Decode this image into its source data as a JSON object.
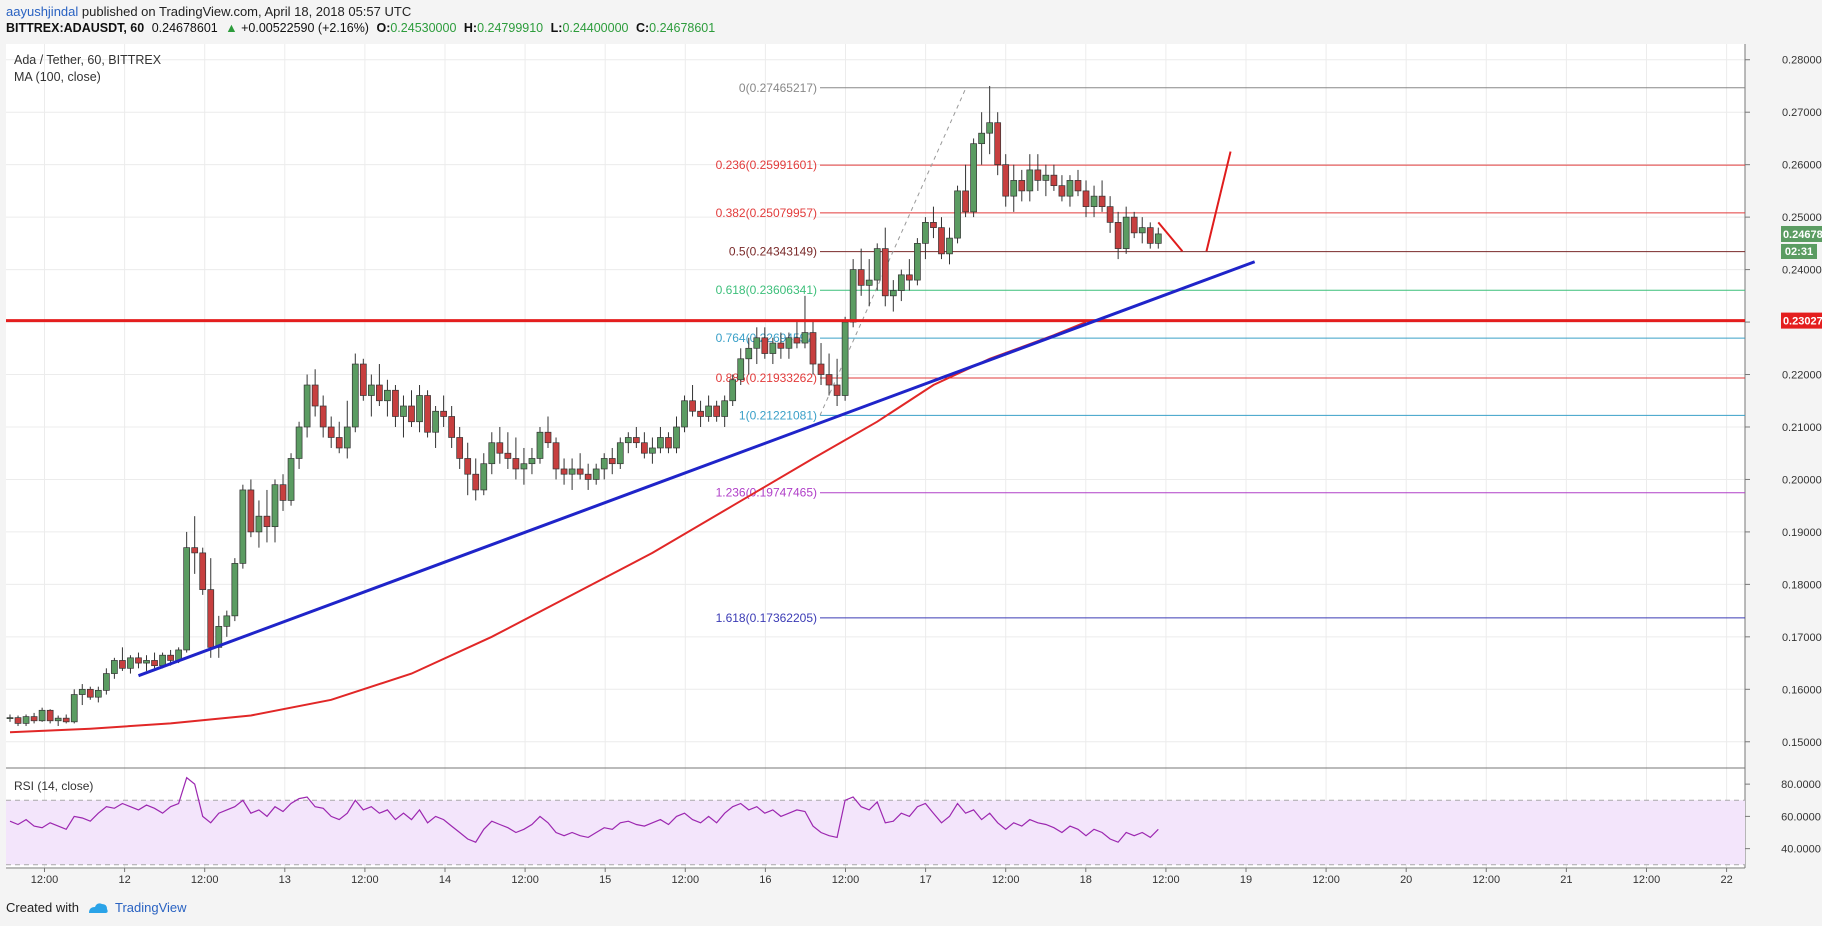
{
  "header": {
    "author": "aayushjindal",
    "published": "published on TradingView.com, April 18, 2018 05:57 UTC",
    "symbol": "BITTREX:ADAUSDT, 60",
    "last": "0.24678601",
    "change": "+0.00522590 (+2.16%)",
    "o_label": "O:",
    "o": "0.24530000",
    "h_label": "H:",
    "h": "0.24799910",
    "l_label": "L:",
    "l": "0.24400000",
    "c_label": "C:",
    "c": "0.24678601"
  },
  "footer": {
    "created": "Created with",
    "brand": "TradingView"
  },
  "colors": {
    "up": "#5b9c62",
    "down": "#c73f3f",
    "trend": "#1f24c9",
    "ma": "#e12727",
    "support": "#e41e1e",
    "rsi_line": "#9c27b0",
    "rsi_fill": "#f3e5fb"
  },
  "icons": {
    "up_arrow": "triangle-up-icon",
    "brand_logo": "tradingview-cloud-icon"
  },
  "chart_data": {
    "type": "candlestick",
    "title": "Ada / Tether, 60, BITTREX",
    "indicator": "MA (100, close)",
    "ylim": [
      0.145,
      0.283
    ],
    "yticks": [
      "0.28000000",
      "0.27000000",
      "0.26000000",
      "0.25000000",
      "0.24000000",
      "0.23000000",
      "0.22000000",
      "0.21000000",
      "0.20000000",
      "0.19000000",
      "0.18000000",
      "0.17000000",
      "0.16000000",
      "0.15000000"
    ],
    "xticks": [
      "12:00",
      "12",
      "12:00",
      "13",
      "12:00",
      "14",
      "12:00",
      "15",
      "12:00",
      "16",
      "12:00",
      "17",
      "12:00",
      "18",
      "12:00",
      "19",
      "12:00",
      "20",
      "12:00",
      "21",
      "12:00",
      "22"
    ],
    "last_price_label": "0.24678601",
    "countdown": "02:31",
    "support_label": "0.23027708",
    "support_level": 0.23027708,
    "fib_levels": [
      {
        "label": "0(0.27465217)",
        "value": 0.27465217,
        "color": "#888888"
      },
      {
        "label": "0.236(0.25991601)",
        "value": 0.25991601,
        "color": "#e23b3b"
      },
      {
        "label": "0.382(0.25079957)",
        "value": 0.25079957,
        "color": "#e23b3b"
      },
      {
        "label": "0.5(0.24343149)",
        "value": 0.24343149,
        "color": "#7a2a2a"
      },
      {
        "label": "0.618(0.23606341)",
        "value": 0.23606341,
        "color": "#3cbf7a"
      },
      {
        "label": "0.764(0.22694597)",
        "value": 0.22694597,
        "color": "#3aa0c8"
      },
      {
        "label": "0.886(0.21933262)",
        "value": 0.21933262,
        "color": "#e23b3b"
      },
      {
        "label": "1(0.21221081)",
        "value": 0.21221081,
        "color": "#3aa0c8"
      },
      {
        "label": "1.236(0.19747465)",
        "value": 0.19747465,
        "color": "#b040c8"
      },
      {
        "label": "1.618(0.17362205)",
        "value": 0.17362205,
        "color": "#3b3bb5"
      }
    ],
    "fib_retracement_start": 0.21221081,
    "fib_retracement_end": 0.27465217,
    "rsi": {
      "label": "RSI (14, close)",
      "yticks": [
        "80.0000",
        "60.0000",
        "40.0000"
      ],
      "ylim": [
        28,
        90
      ],
      "upper": 70,
      "lower": 30
    },
    "candles": [
      [
        0.1545,
        0.1552,
        0.1538,
        0.1546
      ],
      [
        0.1546,
        0.155,
        0.153,
        0.1535
      ],
      [
        0.1535,
        0.1552,
        0.153,
        0.1548
      ],
      [
        0.1548,
        0.1555,
        0.1535,
        0.154
      ],
      [
        0.154,
        0.1565,
        0.1538,
        0.156
      ],
      [
        0.156,
        0.1562,
        0.1535,
        0.154
      ],
      [
        0.154,
        0.155,
        0.153,
        0.1545
      ],
      [
        0.1545,
        0.1552,
        0.1535,
        0.1538
      ],
      [
        0.1538,
        0.16,
        0.1535,
        0.159
      ],
      [
        0.159,
        0.161,
        0.157,
        0.16
      ],
      [
        0.16,
        0.1605,
        0.158,
        0.1585
      ],
      [
        0.1585,
        0.1605,
        0.1575,
        0.1598
      ],
      [
        0.1598,
        0.164,
        0.159,
        0.163
      ],
      [
        0.163,
        0.166,
        0.162,
        0.1655
      ],
      [
        0.1655,
        0.168,
        0.1635,
        0.164
      ],
      [
        0.164,
        0.1665,
        0.163,
        0.166
      ],
      [
        0.166,
        0.167,
        0.164,
        0.165
      ],
      [
        0.165,
        0.1665,
        0.1635,
        0.1655
      ],
      [
        0.1655,
        0.167,
        0.164,
        0.1645
      ],
      [
        0.1645,
        0.167,
        0.164,
        0.1665
      ],
      [
        0.1665,
        0.1675,
        0.1645,
        0.1655
      ],
      [
        0.1655,
        0.168,
        0.165,
        0.1675
      ],
      [
        0.1675,
        0.19,
        0.167,
        0.187
      ],
      [
        0.187,
        0.193,
        0.182,
        0.186
      ],
      [
        0.186,
        0.187,
        0.178,
        0.179
      ],
      [
        0.179,
        0.185,
        0.166,
        0.168
      ],
      [
        0.168,
        0.174,
        0.166,
        0.172
      ],
      [
        0.172,
        0.175,
        0.17,
        0.174
      ],
      [
        0.174,
        0.185,
        0.173,
        0.184
      ],
      [
        0.184,
        0.199,
        0.183,
        0.198
      ],
      [
        0.198,
        0.2,
        0.189,
        0.19
      ],
      [
        0.19,
        0.196,
        0.187,
        0.193
      ],
      [
        0.193,
        0.198,
        0.188,
        0.191
      ],
      [
        0.191,
        0.2,
        0.188,
        0.199
      ],
      [
        0.199,
        0.201,
        0.194,
        0.196
      ],
      [
        0.196,
        0.205,
        0.195,
        0.204
      ],
      [
        0.204,
        0.211,
        0.202,
        0.21
      ],
      [
        0.21,
        0.22,
        0.208,
        0.218
      ],
      [
        0.218,
        0.221,
        0.212,
        0.214
      ],
      [
        0.214,
        0.216,
        0.208,
        0.21
      ],
      [
        0.21,
        0.212,
        0.206,
        0.208
      ],
      [
        0.208,
        0.211,
        0.205,
        0.206
      ],
      [
        0.206,
        0.215,
        0.204,
        0.21
      ],
      [
        0.21,
        0.224,
        0.209,
        0.222
      ],
      [
        0.222,
        0.223,
        0.215,
        0.216
      ],
      [
        0.216,
        0.22,
        0.212,
        0.218
      ],
      [
        0.218,
        0.222,
        0.214,
        0.215
      ],
      [
        0.215,
        0.219,
        0.212,
        0.217
      ],
      [
        0.217,
        0.218,
        0.21,
        0.212
      ],
      [
        0.212,
        0.216,
        0.208,
        0.214
      ],
      [
        0.214,
        0.217,
        0.21,
        0.211
      ],
      [
        0.211,
        0.218,
        0.209,
        0.216
      ],
      [
        0.216,
        0.217,
        0.208,
        0.209
      ],
      [
        0.209,
        0.214,
        0.206,
        0.213
      ],
      [
        0.213,
        0.216,
        0.21,
        0.212
      ],
      [
        0.212,
        0.214,
        0.206,
        0.208
      ],
      [
        0.208,
        0.21,
        0.202,
        0.204
      ],
      [
        0.204,
        0.207,
        0.197,
        0.201
      ],
      [
        0.201,
        0.204,
        0.196,
        0.198
      ],
      [
        0.198,
        0.205,
        0.197,
        0.203
      ],
      [
        0.203,
        0.209,
        0.201,
        0.207
      ],
      [
        0.207,
        0.21,
        0.203,
        0.205
      ],
      [
        0.205,
        0.209,
        0.202,
        0.204
      ],
      [
        0.204,
        0.208,
        0.2,
        0.202
      ],
      [
        0.202,
        0.206,
        0.199,
        0.203
      ],
      [
        0.203,
        0.206,
        0.201,
        0.204
      ],
      [
        0.204,
        0.21,
        0.203,
        0.209
      ],
      [
        0.209,
        0.212,
        0.206,
        0.207
      ],
      [
        0.207,
        0.208,
        0.2,
        0.202
      ],
      [
        0.202,
        0.204,
        0.199,
        0.201
      ],
      [
        0.201,
        0.204,
        0.198,
        0.202
      ],
      [
        0.202,
        0.205,
        0.2,
        0.201
      ],
      [
        0.201,
        0.203,
        0.198,
        0.2
      ],
      [
        0.2,
        0.203,
        0.199,
        0.202
      ],
      [
        0.202,
        0.205,
        0.2,
        0.204
      ],
      [
        0.204,
        0.206,
        0.201,
        0.203
      ],
      [
        0.203,
        0.208,
        0.202,
        0.207
      ],
      [
        0.207,
        0.209,
        0.205,
        0.208
      ],
      [
        0.208,
        0.21,
        0.206,
        0.207
      ],
      [
        0.207,
        0.209,
        0.204,
        0.205
      ],
      [
        0.205,
        0.208,
        0.203,
        0.206
      ],
      [
        0.206,
        0.21,
        0.205,
        0.208
      ],
      [
        0.208,
        0.209,
        0.205,
        0.206
      ],
      [
        0.206,
        0.212,
        0.205,
        0.21
      ],
      [
        0.21,
        0.216,
        0.209,
        0.215
      ],
      [
        0.215,
        0.218,
        0.212,
        0.213
      ],
      [
        0.213,
        0.215,
        0.21,
        0.212
      ],
      [
        0.212,
        0.216,
        0.211,
        0.214
      ],
      [
        0.214,
        0.215,
        0.211,
        0.212
      ],
      [
        0.212,
        0.216,
        0.21,
        0.215
      ],
      [
        0.215,
        0.22,
        0.214,
        0.219
      ],
      [
        0.219,
        0.225,
        0.218,
        0.223
      ],
      [
        0.223,
        0.227,
        0.22,
        0.225
      ],
      [
        0.225,
        0.229,
        0.222,
        0.227
      ],
      [
        0.227,
        0.229,
        0.223,
        0.224
      ],
      [
        0.224,
        0.227,
        0.222,
        0.226
      ],
      [
        0.226,
        0.228,
        0.223,
        0.225
      ],
      [
        0.225,
        0.228,
        0.223,
        0.227
      ],
      [
        0.227,
        0.23,
        0.225,
        0.226
      ],
      [
        0.226,
        0.235,
        0.225,
        0.228
      ],
      [
        0.228,
        0.23,
        0.22,
        0.222
      ],
      [
        0.222,
        0.226,
        0.218,
        0.22
      ],
      [
        0.22,
        0.224,
        0.216,
        0.218
      ],
      [
        0.218,
        0.223,
        0.214,
        0.216
      ],
      [
        0.216,
        0.231,
        0.215,
        0.23
      ],
      [
        0.23,
        0.242,
        0.229,
        0.24
      ],
      [
        0.24,
        0.244,
        0.235,
        0.237
      ],
      [
        0.237,
        0.242,
        0.233,
        0.238
      ],
      [
        0.238,
        0.245,
        0.236,
        0.244
      ],
      [
        0.244,
        0.248,
        0.233,
        0.235
      ],
      [
        0.235,
        0.238,
        0.232,
        0.236
      ],
      [
        0.236,
        0.24,
        0.234,
        0.239
      ],
      [
        0.239,
        0.242,
        0.236,
        0.238
      ],
      [
        0.238,
        0.246,
        0.237,
        0.245
      ],
      [
        0.245,
        0.25,
        0.242,
        0.249
      ],
      [
        0.249,
        0.252,
        0.246,
        0.248
      ],
      [
        0.248,
        0.25,
        0.242,
        0.243
      ],
      [
        0.243,
        0.248,
        0.241,
        0.246
      ],
      [
        0.246,
        0.256,
        0.245,
        0.255
      ],
      [
        0.255,
        0.26,
        0.25,
        0.251
      ],
      [
        0.251,
        0.265,
        0.25,
        0.264
      ],
      [
        0.264,
        0.27,
        0.26,
        0.266
      ],
      [
        0.266,
        0.275,
        0.262,
        0.268
      ],
      [
        0.268,
        0.27,
        0.258,
        0.26
      ],
      [
        0.26,
        0.262,
        0.252,
        0.254
      ],
      [
        0.254,
        0.26,
        0.251,
        0.257
      ],
      [
        0.257,
        0.259,
        0.253,
        0.255
      ],
      [
        0.255,
        0.262,
        0.253,
        0.259
      ],
      [
        0.259,
        0.262,
        0.255,
        0.257
      ],
      [
        0.257,
        0.26,
        0.254,
        0.258
      ],
      [
        0.258,
        0.26,
        0.255,
        0.256
      ],
      [
        0.256,
        0.258,
        0.253,
        0.254
      ],
      [
        0.254,
        0.258,
        0.252,
        0.257
      ],
      [
        0.257,
        0.259,
        0.254,
        0.255
      ],
      [
        0.255,
        0.257,
        0.25,
        0.252
      ],
      [
        0.252,
        0.256,
        0.25,
        0.254
      ],
      [
        0.254,
        0.257,
        0.251,
        0.252
      ],
      [
        0.252,
        0.254,
        0.247,
        0.249
      ],
      [
        0.249,
        0.251,
        0.242,
        0.244
      ],
      [
        0.244,
        0.252,
        0.243,
        0.25
      ],
      [
        0.25,
        0.251,
        0.246,
        0.247
      ],
      [
        0.247,
        0.25,
        0.245,
        0.248
      ],
      [
        0.248,
        0.249,
        0.244,
        0.245
      ],
      [
        0.245,
        0.248,
        0.244,
        0.2468
      ]
    ],
    "ma100": [
      [
        0,
        0.1518
      ],
      [
        10,
        0.1525
      ],
      [
        20,
        0.1535
      ],
      [
        30,
        0.155
      ],
      [
        40,
        0.158
      ],
      [
        50,
        0.163
      ],
      [
        60,
        0.17
      ],
      [
        70,
        0.178
      ],
      [
        80,
        0.186
      ],
      [
        90,
        0.195
      ],
      [
        100,
        0.204
      ],
      [
        108,
        0.211
      ],
      [
        115,
        0.218
      ],
      [
        122,
        0.223
      ],
      [
        130,
        0.2275
      ],
      [
        134,
        0.23
      ]
    ],
    "trendline": [
      [
        16,
        0.1626
      ],
      [
        155,
        0.2415
      ]
    ],
    "projection": [
      [
        [
          143,
          0.249
        ],
        [
          146,
          0.2435
        ]
      ],
      [
        [
          149,
          0.2435
        ],
        [
          152,
          0.2625
        ]
      ]
    ],
    "rsi_values": [
      57,
      55,
      58,
      54,
      53,
      56,
      54,
      52,
      60,
      59,
      57,
      62,
      66,
      65,
      68,
      66,
      64,
      67,
      65,
      62,
      66,
      68,
      84,
      80,
      60,
      56,
      62,
      64,
      66,
      70,
      62,
      64,
      60,
      66,
      63,
      68,
      71,
      72,
      66,
      65,
      60,
      58,
      62,
      70,
      64,
      66,
      62,
      64,
      58,
      62,
      58,
      64,
      56,
      60,
      58,
      54,
      50,
      46,
      44,
      52,
      57,
      55,
      53,
      50,
      52,
      55,
      60,
      56,
      50,
      48,
      50,
      48,
      47,
      50,
      53,
      52,
      56,
      57,
      55,
      54,
      56,
      58,
      55,
      60,
      62,
      58,
      56,
      60,
      56,
      62,
      66,
      68,
      64,
      66,
      62,
      64,
      60,
      62,
      64,
      63,
      54,
      50,
      48,
      47,
      70,
      72,
      66,
      64,
      69,
      56,
      57,
      62,
      60,
      66,
      68,
      62,
      56,
      60,
      68,
      62,
      64,
      58,
      62,
      56,
      52,
      56,
      54,
      58,
      56,
      55,
      53,
      50,
      54,
      52,
      48,
      52,
      50,
      46,
      44,
      50,
      48,
      50,
      47,
      52
    ]
  }
}
